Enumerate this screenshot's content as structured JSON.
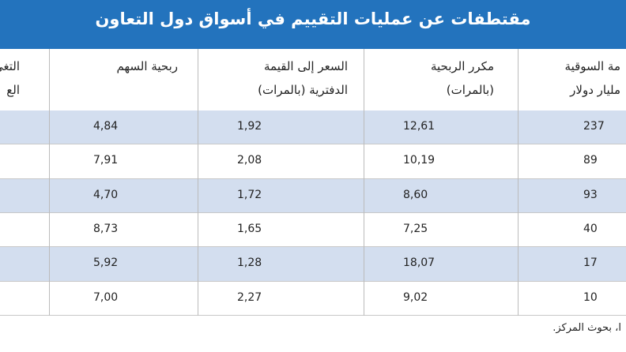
{
  "title": "مقتطفات عن عمليات التقييم في أسواق دول التعاون",
  "table": {
    "header": [
      [
        "مة السوقية",
        "مليار دولار"
      ],
      [
        "مكرر الربحية",
        "(بالمرات)"
      ],
      [
        "السعر إلى القيمة",
        "الدفترية (بالمرات)"
      ],
      [
        "ربحية السهم"
      ],
      [
        "التغي",
        "الع"
      ]
    ],
    "rows": [
      [
        "237",
        "12,61",
        "1,92",
        "4,84"
      ],
      [
        "89",
        "10,19",
        "2,08",
        "7,91"
      ],
      [
        "93",
        "8,60",
        "1,72",
        "4,70"
      ],
      [
        "40",
        "7,25",
        "1,65",
        "8,73"
      ],
      [
        "17",
        "18,07",
        "1,28",
        "5,92"
      ],
      [
        "10",
        "9,02",
        "2,27",
        "7,00"
      ]
    ]
  },
  "source": "ا، بحوث المركز."
}
